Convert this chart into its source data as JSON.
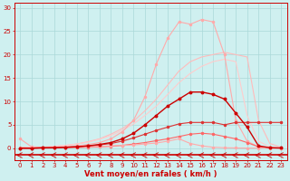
{
  "x": [
    0,
    1,
    2,
    3,
    4,
    5,
    6,
    7,
    8,
    9,
    10,
    11,
    12,
    13,
    14,
    15,
    16,
    17,
    18,
    19,
    20,
    21,
    22,
    23
  ],
  "background_color": "#cff0f0",
  "grid_color": "#aad8d8",
  "xlabel": "Vent moyen/en rafales ( km/h )",
  "xlabel_color": "#cc0000",
  "yticks": [
    0,
    5,
    10,
    15,
    20,
    25,
    30
  ],
  "ylim": [
    -2.5,
    31
  ],
  "xlim": [
    -0.5,
    23.5
  ],
  "curves": [
    {
      "y": [
        0.2,
        0.1,
        0.1,
        0.2,
        0.3,
        0.5,
        0.8,
        1.2,
        2.0,
        3.5,
        6.0,
        11.0,
        18.0,
        23.5,
        27.0,
        26.5,
        27.5,
        27.0,
        20.0,
        6.0,
        1.5,
        0.3,
        0.1,
        0.05
      ],
      "color": "#ffaaaa",
      "lw": 0.8,
      "marker": "o",
      "ms": 1.5,
      "zorder": 3
    },
    {
      "y": [
        0.1,
        0.1,
        0.2,
        0.4,
        0.6,
        0.9,
        1.4,
        2.0,
        3.0,
        4.2,
        5.8,
        8.0,
        10.5,
        13.5,
        16.5,
        18.5,
        19.5,
        20.0,
        20.5,
        20.0,
        19.5,
        6.0,
        1.0,
        0.2
      ],
      "color": "#ffbbbb",
      "lw": 0.8,
      "marker": null,
      "ms": 0,
      "zorder": 2
    },
    {
      "y": [
        0.1,
        0.1,
        0.2,
        0.4,
        0.6,
        0.9,
        1.3,
        1.9,
        2.7,
        3.8,
        5.2,
        7.0,
        9.0,
        11.5,
        14.0,
        16.0,
        17.5,
        18.5,
        19.0,
        18.5,
        7.0,
        1.5,
        0.3,
        0.05
      ],
      "color": "#ffcccc",
      "lw": 0.8,
      "marker": null,
      "ms": 0,
      "zorder": 2
    },
    {
      "y": [
        0.0,
        0.0,
        0.1,
        0.1,
        0.2,
        0.3,
        0.5,
        0.8,
        1.2,
        2.0,
        3.2,
        5.0,
        7.0,
        9.0,
        10.5,
        12.0,
        12.0,
        11.5,
        10.5,
        7.5,
        4.5,
        0.5,
        0.1,
        0.05
      ],
      "color": "#cc0000",
      "lw": 1.0,
      "marker": "o",
      "ms": 1.8,
      "zorder": 5
    },
    {
      "y": [
        0.0,
        0.0,
        0.05,
        0.1,
        0.2,
        0.3,
        0.5,
        0.7,
        1.0,
        1.5,
        2.2,
        3.0,
        3.8,
        4.5,
        5.2,
        5.5,
        5.5,
        5.5,
        5.0,
        5.5,
        5.5,
        5.5,
        5.5,
        5.5
      ],
      "color": "#dd3333",
      "lw": 0.8,
      "marker": "o",
      "ms": 1.5,
      "zorder": 4
    },
    {
      "y": [
        0.0,
        0.0,
        0.0,
        0.05,
        0.1,
        0.15,
        0.2,
        0.3,
        0.4,
        0.6,
        0.9,
        1.2,
        1.6,
        2.0,
        2.5,
        3.0,
        3.2,
        3.0,
        2.5,
        2.0,
        1.2,
        0.3,
        0.05,
        0.0
      ],
      "color": "#ff6666",
      "lw": 0.8,
      "marker": "o",
      "ms": 1.5,
      "zorder": 3
    },
    {
      "y": [
        2.0,
        0.3,
        0.2,
        0.2,
        0.2,
        0.3,
        0.3,
        0.4,
        0.5,
        0.6,
        0.7,
        0.9,
        1.1,
        1.5,
        2.0,
        1.0,
        0.5,
        0.2,
        0.1,
        0.05,
        0.02,
        0.01,
        0.01,
        0.01
      ],
      "color": "#ffaaaa",
      "lw": 0.8,
      "marker": "o",
      "ms": 1.5,
      "zorder": 3
    }
  ],
  "bottom_line_y": -1.5,
  "arrow_color": "#cc0000",
  "tick_label_color": "#cc0000",
  "tick_label_size": 5.0,
  "xlabel_size": 6.0
}
